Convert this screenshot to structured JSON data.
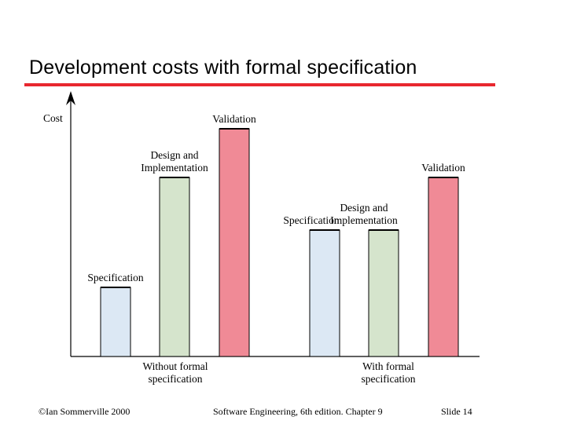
{
  "slide": {
    "title": "Development costs with formal specification",
    "accent_color": "#e8272f"
  },
  "footer": {
    "left": "©Ian Sommerville 2000",
    "center": "Software Engineering, 6th edition. Chapter 9",
    "right": "Slide  14"
  },
  "chart_data": {
    "type": "bar",
    "title": "",
    "ylabel": "Cost",
    "xlabel": "",
    "y_ticks": false,
    "grid": false,
    "groups": [
      {
        "label_lines": [
          "Without formal",
          "specification"
        ],
        "bars": [
          {
            "label_lines": [
              "Specification"
            ],
            "value": 88,
            "color": "#dce8f4"
          },
          {
            "label_lines": [
              "Design and",
              "Implementation"
            ],
            "value": 228,
            "color": "#d5e4cc"
          },
          {
            "label_lines": [
              "Validation"
            ],
            "value": 290,
            "color": "#f08a96"
          }
        ]
      },
      {
        "label_lines": [
          "With formal",
          "specification"
        ],
        "bars": [
          {
            "label_lines": [
              "Specification"
            ],
            "value": 161,
            "color": "#dce8f4"
          },
          {
            "label_lines": [
              "Design and",
              "Implementation"
            ],
            "value": 161,
            "color": "#d5e4cc"
          },
          {
            "label_lines": [
              "Validation"
            ],
            "value": 228,
            "color": "#f08a96"
          }
        ]
      }
    ]
  }
}
